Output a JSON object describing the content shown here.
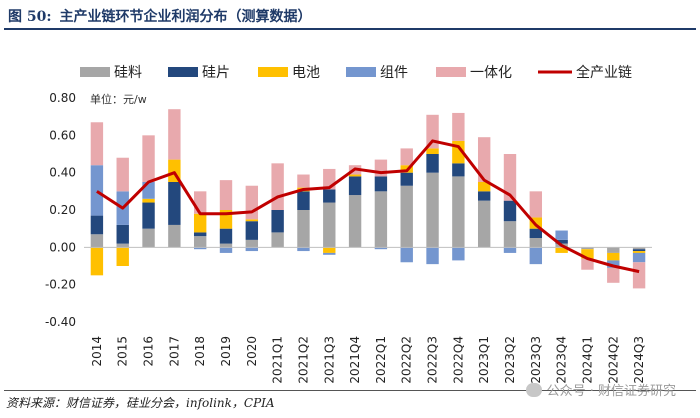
{
  "figure": {
    "number": "图 50:",
    "title": "主产业链环节企业利润分布（测算数据）"
  },
  "chart_data": {
    "type": "bar",
    "stacked": true,
    "unit_label": "单位：元/w",
    "categories": [
      "2014",
      "2015",
      "2016",
      "2017",
      "2018",
      "2019",
      "2020",
      "2021Q1",
      "2021Q2",
      "2021Q3",
      "2021Q4",
      "2022Q1",
      "2022Q2",
      "2022Q3",
      "2022Q4",
      "2023Q1",
      "2023Q2",
      "2023Q3",
      "2023Q4",
      "2024Q1",
      "2024Q2",
      "2024Q3"
    ],
    "ylim": [
      -0.4,
      0.8
    ],
    "yticks": [
      "-0.40",
      "-0.20",
      "0.00",
      "0.20",
      "0.40",
      "0.60",
      "0.80"
    ],
    "ytick_values": [
      -0.4,
      -0.2,
      0.0,
      0.2,
      0.4,
      0.6,
      0.8
    ],
    "series": [
      {
        "name": "硅料",
        "color": "#a6a6a6",
        "values": [
          0.07,
          0.02,
          0.1,
          0.12,
          0.06,
          0.02,
          0.04,
          0.08,
          0.2,
          0.24,
          0.28,
          0.3,
          0.33,
          0.4,
          0.38,
          0.25,
          0.14,
          0.05,
          0.02,
          -0.01,
          -0.03,
          -0.01
        ]
      },
      {
        "name": "硅片",
        "color": "#23487d",
        "values": [
          0.1,
          0.1,
          0.14,
          0.23,
          0.02,
          0.08,
          0.1,
          0.12,
          0.1,
          0.07,
          0.1,
          0.08,
          0.07,
          0.1,
          0.07,
          0.05,
          0.11,
          0.05,
          0.02,
          0.0,
          0.0,
          -0.01
        ]
      },
      {
        "name": "电池",
        "color": "#ffc000",
        "values": [
          -0.15,
          -0.1,
          0.02,
          0.12,
          0.1,
          0.1,
          0.01,
          0.0,
          0.02,
          -0.03,
          0.01,
          0.0,
          0.04,
          0.03,
          0.12,
          0.05,
          0.0,
          0.06,
          -0.03,
          -0.05,
          -0.04,
          -0.01
        ]
      },
      {
        "name": "组件",
        "color": "#7496cf",
        "values": [
          0.27,
          0.18,
          0.09,
          0.0,
          -0.01,
          -0.03,
          -0.02,
          0.0,
          -0.02,
          -0.01,
          0.0,
          -0.01,
          -0.08,
          -0.09,
          -0.07,
          0.0,
          -0.03,
          -0.09,
          0.05,
          0.0,
          -0.04,
          -0.05
        ]
      },
      {
        "name": "一体化",
        "color": "#e8a9ad",
        "values": [
          0.23,
          0.18,
          0.25,
          0.27,
          0.12,
          0.16,
          0.18,
          0.25,
          0.07,
          0.11,
          0.05,
          0.09,
          0.09,
          0.18,
          0.15,
          0.24,
          0.25,
          0.14,
          0.0,
          -0.06,
          -0.08,
          -0.14
        ]
      },
      {
        "name": "全产业链",
        "color": "#c00000",
        "kind": "line",
        "values": [
          0.3,
          0.21,
          0.35,
          0.4,
          0.18,
          0.18,
          0.19,
          0.27,
          0.31,
          0.32,
          0.42,
          0.4,
          0.41,
          0.57,
          0.54,
          0.36,
          0.28,
          0.12,
          0.01,
          -0.06,
          -0.1,
          -0.13
        ]
      }
    ]
  },
  "source": "资料来源：财信证券，硅业分会，infolink，CPIA",
  "watermark": "公众号 · 财信证券研究"
}
